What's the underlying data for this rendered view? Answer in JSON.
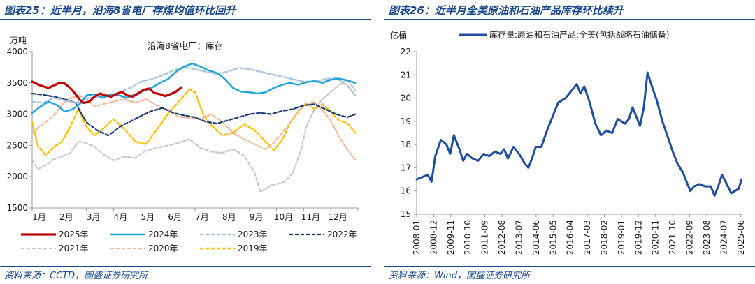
{
  "left_panel": {
    "figure_title": "图表25：近半月，沿海8省电厂存煤均值环比回升",
    "source": "资料来源：CCTD，国盛证券研究所"
  },
  "right_panel": {
    "figure_title": "图表26：近半月全美原油和石油产品库存环比续升",
    "source": "资料来源：Wind，国盛证券研究所"
  },
  "chart_data": [
    {
      "type": "line",
      "title": "沿海8省电厂：库存",
      "ylabel": "万吨",
      "ylim": [
        1500,
        4000
      ],
      "yticks": [
        1500,
        2000,
        2500,
        3000,
        3500,
        4000
      ],
      "xlim": [
        1,
        13
      ],
      "categories": [
        "1月",
        "2月",
        "3月",
        "4月",
        "5月",
        "6月",
        "7月",
        "8月",
        "9月",
        "10月",
        "11月",
        "12月"
      ],
      "grid": false,
      "legend": "bottom",
      "series": [
        {
          "name": "2025年",
          "color": "#c00000",
          "style": "solid",
          "width": 3.2,
          "x": [
            1.0,
            1.3,
            1.6,
            1.8,
            2.0,
            2.2,
            2.4,
            2.6,
            2.75,
            2.9,
            3.1,
            3.3,
            3.5,
            3.7,
            3.9,
            4.1,
            4.3,
            4.5,
            4.7,
            4.9,
            5.1,
            5.3,
            5.5,
            5.7,
            5.9,
            6.1,
            6.3,
            6.5
          ],
          "y": [
            3520,
            3460,
            3420,
            3460,
            3500,
            3490,
            3420,
            3320,
            3230,
            3180,
            3200,
            3280,
            3330,
            3300,
            3280,
            3320,
            3360,
            3300,
            3280,
            3330,
            3390,
            3410,
            3340,
            3320,
            3290,
            3320,
            3360,
            3430
          ]
        },
        {
          "name": "2024年",
          "color": "#1aa3dd",
          "style": "solid",
          "width": 2.4,
          "x": [
            1.0,
            1.3,
            1.6,
            1.9,
            2.2,
            2.5,
            2.8,
            3.0,
            3.3,
            3.6,
            3.9,
            4.2,
            4.5,
            4.8,
            5.1,
            5.4,
            5.7,
            6.0,
            6.3,
            6.6,
            6.9,
            7.2,
            7.5,
            7.8,
            8.1,
            8.4,
            8.7,
            9.0,
            9.3,
            9.6,
            9.9,
            10.2,
            10.5,
            10.8,
            11.1,
            11.4,
            11.7,
            12.0,
            12.3,
            12.6,
            12.9
          ],
          "y": [
            3020,
            3120,
            3200,
            3150,
            3040,
            3080,
            3180,
            3300,
            3320,
            3260,
            3320,
            3300,
            3260,
            3320,
            3370,
            3420,
            3500,
            3560,
            3680,
            3760,
            3810,
            3760,
            3700,
            3660,
            3560,
            3420,
            3360,
            3350,
            3330,
            3350,
            3420,
            3470,
            3500,
            3470,
            3510,
            3530,
            3500,
            3550,
            3570,
            3540,
            3500
          ]
        },
        {
          "name": "2023年",
          "color": "#a9c4e2",
          "style": "dashed",
          "width": 2.4,
          "x": [
            1.0,
            1.4,
            1.8,
            2.2,
            2.6,
            3.0,
            3.4,
            3.8,
            4.2,
            4.6,
            5.0,
            5.4,
            5.8,
            6.2,
            6.6,
            7.0,
            7.4,
            7.8,
            8.2,
            8.6,
            9.0,
            9.4,
            9.8,
            10.2,
            10.6,
            11.0,
            11.4,
            11.8,
            12.2,
            12.6,
            12.9
          ],
          "y": [
            3200,
            3180,
            3260,
            3220,
            3180,
            3250,
            3280,
            3300,
            3340,
            3420,
            3520,
            3560,
            3620,
            3700,
            3760,
            3720,
            3680,
            3640,
            3680,
            3740,
            3720,
            3680,
            3640,
            3600,
            3560,
            3520,
            3520,
            3560,
            3580,
            3460,
            3300
          ]
        },
        {
          "name": "2022年",
          "color": "#17386e",
          "style": "dashed",
          "width": 2.2,
          "x": [
            1.0,
            1.4,
            1.8,
            2.2,
            2.6,
            2.8,
            3.0,
            3.4,
            3.8,
            4.0,
            4.3,
            4.6,
            5.0,
            5.4,
            5.8,
            6.2,
            6.6,
            7.0,
            7.4,
            7.8,
            8.2,
            8.6,
            9.0,
            9.4,
            9.8,
            10.2,
            10.6,
            11.0,
            11.4,
            11.8,
            12.2,
            12.6,
            12.9
          ],
          "y": [
            3330,
            3310,
            3280,
            3240,
            3180,
            3020,
            2870,
            2740,
            2660,
            2720,
            2820,
            2880,
            2970,
            3050,
            3100,
            3020,
            2980,
            2950,
            2880,
            2850,
            2900,
            2950,
            3000,
            3020,
            3000,
            3050,
            3080,
            3140,
            3160,
            3080,
            3000,
            2950,
            3000
          ]
        },
        {
          "name": "2021年",
          "color": "#c8c8c8",
          "style": "dashed",
          "width": 2.2,
          "x": [
            1.0,
            1.2,
            1.5,
            1.8,
            2.1,
            2.4,
            2.7,
            3.0,
            3.3,
            3.6,
            4.0,
            4.4,
            4.8,
            5.2,
            5.6,
            6.0,
            6.4,
            6.8,
            7.2,
            7.6,
            8.0,
            8.4,
            8.8,
            9.2,
            9.4,
            9.6,
            9.8,
            10.0,
            10.3,
            10.6,
            10.9,
            11.1,
            11.4,
            11.7,
            12.0,
            12.3,
            12.6,
            12.9
          ],
          "y": [
            2270,
            2120,
            2180,
            2280,
            2320,
            2380,
            2560,
            2540,
            2480,
            2360,
            2260,
            2320,
            2300,
            2420,
            2460,
            2500,
            2540,
            2600,
            2460,
            2400,
            2380,
            2440,
            2340,
            2060,
            1760,
            1800,
            1860,
            1880,
            1920,
            2060,
            2420,
            2800,
            3080,
            3240,
            3360,
            3460,
            3560,
            3380
          ]
        },
        {
          "name": "2020年",
          "color": "#f5b896",
          "style": "dashed",
          "width": 2.2,
          "x": [
            1.0,
            1.4,
            1.8,
            2.1,
            2.4,
            2.7,
            3.0,
            3.3,
            3.6,
            4.0,
            4.4,
            4.8,
            5.2,
            5.6,
            6.0,
            6.4,
            6.8,
            7.2,
            7.6,
            8.0,
            8.4,
            8.8,
            9.2,
            9.6,
            9.9,
            10.2,
            10.5,
            10.8,
            11.1,
            11.4,
            11.7,
            12.0,
            12.3,
            12.6,
            12.9
          ],
          "y": [
            2700,
            2840,
            2980,
            3150,
            3260,
            3300,
            3240,
            3120,
            3160,
            3200,
            3240,
            3180,
            3240,
            3140,
            3060,
            2960,
            2940,
            2920,
            3000,
            2880,
            2700,
            2600,
            2520,
            2440,
            2540,
            2700,
            2860,
            3050,
            3160,
            3200,
            3060,
            2900,
            2640,
            2440,
            2270
          ]
        },
        {
          "name": "2019年",
          "color": "#ffc000",
          "style": "dashed",
          "width": 2.4,
          "x": [
            1.0,
            1.2,
            1.5,
            1.8,
            2.1,
            2.4,
            2.7,
            3.0,
            3.3,
            3.6,
            4.0,
            4.4,
            4.8,
            5.2,
            5.6,
            6.0,
            6.4,
            6.8,
            7.0,
            7.3,
            7.6,
            8.0,
            8.4,
            8.8,
            9.2,
            9.6,
            9.9,
            10.2,
            10.5,
            10.8,
            11.1,
            11.4,
            11.7,
            12.0,
            12.3,
            12.6,
            12.9
          ],
          "y": [
            2880,
            2500,
            2340,
            2480,
            2560,
            2800,
            3080,
            2800,
            2660,
            2760,
            2920,
            2760,
            2560,
            2520,
            2760,
            3000,
            3200,
            3400,
            3350,
            3000,
            2820,
            2660,
            2700,
            2840,
            2740,
            2560,
            2420,
            2580,
            2860,
            3040,
            3180,
            3080,
            3160,
            3040,
            2900,
            2860,
            2700
          ]
        }
      ]
    },
    {
      "type": "line",
      "title": "",
      "ylabel": "亿桶",
      "ylim": [
        15,
        22
      ],
      "yticks": [
        15,
        16,
        17,
        18,
        19,
        20,
        21,
        22
      ],
      "xlim": [
        2008.0,
        2025.5
      ],
      "xticks": [
        "2008-01",
        "2008-12",
        "2009-11",
        "2010-10",
        "2011-09",
        "2012-08",
        "2013-07",
        "2014-06",
        "2015-05",
        "2016-04",
        "2017-03",
        "2018-02",
        "2019-01",
        "2019-12",
        "2020-11",
        "2021-10",
        "2022-09",
        "2023-08",
        "2024-07",
        "2025-06"
      ],
      "grid": false,
      "legend": "top",
      "series": [
        {
          "name": "库存量:原油和石油产品:全美(包括战略石油储备)",
          "color": "#1f4e9e",
          "style": "solid",
          "width": 3,
          "x": [
            2008.0,
            2008.3,
            2008.6,
            2008.8,
            2009.0,
            2009.3,
            2009.6,
            2009.8,
            2010.0,
            2010.3,
            2010.5,
            2010.7,
            2011.0,
            2011.3,
            2011.6,
            2011.9,
            2012.2,
            2012.5,
            2012.7,
            2012.9,
            2013.2,
            2013.5,
            2013.8,
            2014.0,
            2014.2,
            2014.4,
            2014.7,
            2015.0,
            2015.3,
            2015.6,
            2016.0,
            2016.3,
            2016.6,
            2016.8,
            2017.0,
            2017.3,
            2017.6,
            2017.9,
            2018.2,
            2018.5,
            2018.8,
            2019.0,
            2019.2,
            2019.4,
            2019.6,
            2019.8,
            2020.0,
            2020.2,
            2020.4,
            2020.6,
            2020.9,
            2021.2,
            2021.5,
            2021.8,
            2022.0,
            2022.3,
            2022.5,
            2022.7,
            2022.9,
            2023.2,
            2023.5,
            2023.8,
            2024.0,
            2024.2,
            2024.4,
            2024.6,
            2024.9,
            2025.1,
            2025.3,
            2025.45
          ],
          "y": [
            16.5,
            16.6,
            16.7,
            16.4,
            17.5,
            18.2,
            18.0,
            17.6,
            18.4,
            17.8,
            17.3,
            17.6,
            17.4,
            17.3,
            17.6,
            17.5,
            17.7,
            17.6,
            17.8,
            17.4,
            17.9,
            17.6,
            17.2,
            17.0,
            17.4,
            17.9,
            17.9,
            18.6,
            19.2,
            19.8,
            20.0,
            20.3,
            20.6,
            20.2,
            20.5,
            19.8,
            18.9,
            18.4,
            18.6,
            18.5,
            19.1,
            19.0,
            18.9,
            19.1,
            19.6,
            19.2,
            18.8,
            19.6,
            21.1,
            20.6,
            19.9,
            19.0,
            18.3,
            17.6,
            17.2,
            16.8,
            16.4,
            16.0,
            16.2,
            16.3,
            16.2,
            16.2,
            15.8,
            16.2,
            16.7,
            16.4,
            15.9,
            16.0,
            16.1,
            16.5
          ]
        }
      ]
    }
  ]
}
